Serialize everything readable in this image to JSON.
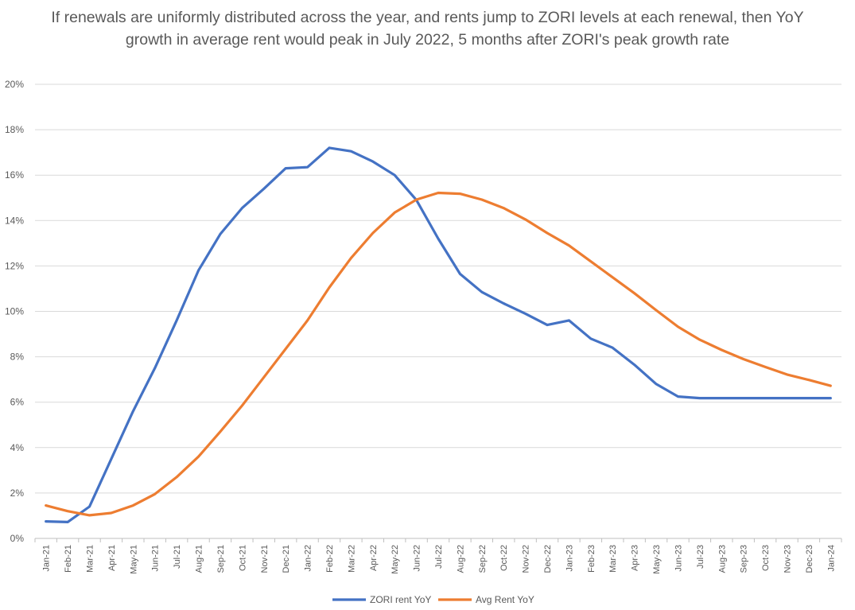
{
  "chart_data": {
    "type": "line",
    "title": "If renewals are uniformly distributed across the year, and rents jump to ZORI levels at each renewal, then YoY growth in average rent would peak in July 2022, 5 months after ZORI's peak growth rate",
    "xlabel": "",
    "ylabel": "",
    "ylim": [
      0,
      20
    ],
    "yticks": [
      "0%",
      "2%",
      "4%",
      "6%",
      "8%",
      "10%",
      "12%",
      "14%",
      "16%",
      "18%",
      "20%"
    ],
    "grid": true,
    "legend_position": "bottom",
    "categories": [
      "Jan-21",
      "Feb-21",
      "Mar-21",
      "Apr-21",
      "May-21",
      "Jun-21",
      "Jul-21",
      "Aug-21",
      "Sep-21",
      "Oct-21",
      "Nov-21",
      "Dec-21",
      "Jan-22",
      "Feb-22",
      "Mar-22",
      "Apr-22",
      "May-22",
      "Jun-22",
      "Jul-22",
      "Aug-22",
      "Sep-22",
      "Oct-22",
      "Nov-22",
      "Dec-22",
      "Jan-23",
      "Feb-23",
      "Mar-23",
      "Apr-23",
      "May-23",
      "Jun-23",
      "Jul-23",
      "Aug-23",
      "Sep-23",
      "Oct-23",
      "Nov-23",
      "Dec-23",
      "Jan-24"
    ],
    "series": [
      {
        "name": "ZORI rent YoY",
        "color": "#4472C4",
        "values": [
          0.75,
          0.72,
          1.4,
          3.5,
          5.6,
          7.5,
          9.6,
          11.8,
          13.4,
          14.55,
          15.4,
          16.3,
          16.35,
          17.2,
          17.05,
          16.6,
          16.0,
          14.9,
          13.2,
          11.65,
          10.85,
          10.35,
          9.9,
          9.4,
          9.6,
          8.8,
          8.4,
          7.65,
          6.8,
          6.25,
          6.18,
          6.18,
          6.18,
          6.18,
          6.18,
          6.18,
          6.18
        ]
      },
      {
        "name": "Avg Rent YoY",
        "color": "#ED7D31",
        "values": [
          1.45,
          1.2,
          1.02,
          1.12,
          1.45,
          1.95,
          2.7,
          3.6,
          4.7,
          5.85,
          7.1,
          8.35,
          9.6,
          11.05,
          12.35,
          13.45,
          14.35,
          14.92,
          15.22,
          15.18,
          14.92,
          14.55,
          14.05,
          13.45,
          12.9,
          12.2,
          11.5,
          10.8,
          10.05,
          9.32,
          8.75,
          8.3,
          7.9,
          7.55,
          7.22,
          6.98,
          6.72
        ]
      }
    ]
  }
}
